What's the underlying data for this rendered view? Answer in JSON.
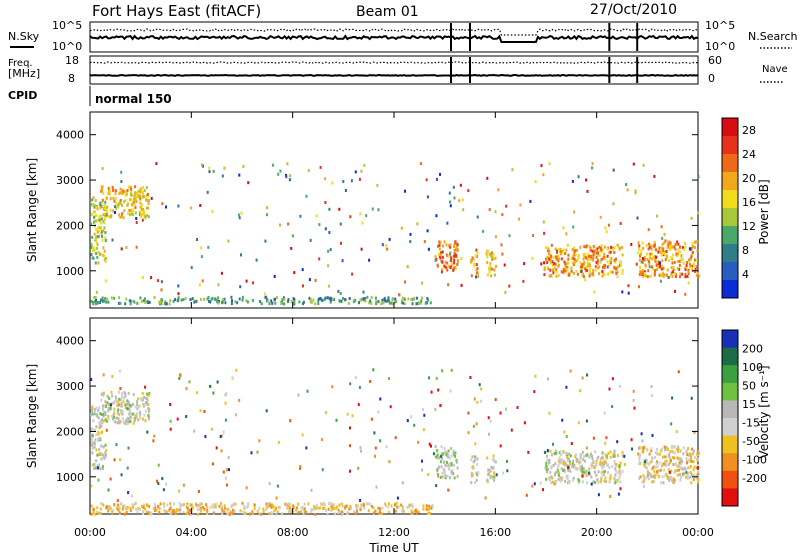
{
  "header": {
    "station": "Fort Hays East (fitACF)",
    "beam": "Beam 01",
    "date": "27/Oct/2010"
  },
  "noise_panel": {
    "left_label": "N.Sky",
    "right_label": "N.Search",
    "left_ticks": [
      "10^5",
      "10^0"
    ],
    "right_ticks": [
      "10^5",
      "10^0"
    ]
  },
  "freq_panel": {
    "left_label_1": "Freq.",
    "left_label_2": "[MHz]",
    "right_label": "Nave",
    "left_ticks": [
      "18",
      "8"
    ],
    "right_ticks": [
      "60",
      "0"
    ]
  },
  "cpid": {
    "label": "CPID",
    "value": "normal 150"
  },
  "axes": {
    "y_label": "Slant Range [km]",
    "y_ticks": [
      "1000",
      "2000",
      "3000",
      "4000"
    ],
    "x_ticks": [
      "00:00",
      "04:00",
      "08:00",
      "12:00",
      "16:00",
      "20:00",
      "00:00"
    ],
    "x_label": "Time UT"
  },
  "power_bar": {
    "label": "Power [dB]",
    "ticks": [
      "4",
      "8",
      "12",
      "16",
      "20",
      "24",
      "28"
    ],
    "colors": [
      "#0b2bd6",
      "#2a5cc0",
      "#2f7d88",
      "#4aa86a",
      "#a8c83a",
      "#f0dc1c",
      "#f2a81a",
      "#ee6a18",
      "#e6321c",
      "#d80c14"
    ]
  },
  "velocity_bar": {
    "label": "Velocity [m s⁻¹]",
    "ticks": [
      "200",
      "100",
      "50",
      "15",
      "-15",
      "-50",
      "-100",
      "-200"
    ],
    "colors": [
      "#1830b8",
      "#1c6c48",
      "#3aa040",
      "#70c040",
      "#b8b8b8",
      "#d0d0d0",
      "#f0c020",
      "#f09020",
      "#f05010",
      "#e01010"
    ]
  },
  "chart_data": [
    {
      "type": "heatmap",
      "title": "Power",
      "xlim": [
        0,
        24
      ],
      "ylim": [
        180,
        4500
      ],
      "xlabel": "Time UT",
      "ylabel": "Slant Range [km]",
      "colorbar": "Power [dB]",
      "clim": [
        0,
        30
      ],
      "regions": [
        {
          "t": [
            0.0,
            0.6
          ],
          "r": [
            1200,
            2600
          ],
          "value": 14
        },
        {
          "t": [
            0.4,
            2.3
          ],
          "r": [
            2200,
            2900
          ],
          "value": 18
        },
        {
          "t": [
            0.0,
            13.5
          ],
          "r": [
            300,
            450
          ],
          "value": 10
        },
        {
          "t": [
            13.6,
            14.5
          ],
          "r": [
            1000,
            1700
          ],
          "value": 22
        },
        {
          "t": [
            15.0,
            15.3
          ],
          "r": [
            900,
            1500
          ],
          "value": 20
        },
        {
          "t": [
            15.6,
            16.0
          ],
          "r": [
            900,
            1500
          ],
          "value": 18
        },
        {
          "t": [
            17.9,
            21.0
          ],
          "r": [
            900,
            1600
          ],
          "value": 20
        },
        {
          "t": [
            21.6,
            24.0
          ],
          "r": [
            900,
            1700
          ],
          "value": 20
        }
      ]
    },
    {
      "type": "heatmap",
      "title": "Velocity",
      "xlim": [
        0,
        24
      ],
      "ylim": [
        180,
        4500
      ],
      "xlabel": "Time UT",
      "ylabel": "Slant Range [km]",
      "colorbar": "Velocity [m s⁻¹]",
      "clim": [
        -200,
        200
      ],
      "regions": [
        {
          "t": [
            0.0,
            0.6
          ],
          "r": [
            1200,
            2600
          ],
          "value": 0
        },
        {
          "t": [
            0.4,
            2.3
          ],
          "r": [
            2200,
            2900
          ],
          "value": 0
        },
        {
          "t": [
            0.0,
            13.5
          ],
          "r": [
            200,
            450
          ],
          "value": -60
        },
        {
          "t": [
            13.6,
            14.5
          ],
          "r": [
            1000,
            1700
          ],
          "value": 20
        },
        {
          "t": [
            15.0,
            15.3
          ],
          "r": [
            900,
            1500
          ],
          "value": 0
        },
        {
          "t": [
            15.6,
            16.0
          ],
          "r": [
            900,
            1500
          ],
          "value": 0
        },
        {
          "t": [
            17.9,
            21.0
          ],
          "r": [
            900,
            1600
          ],
          "value": 0
        },
        {
          "t": [
            21.6,
            24.0
          ],
          "r": [
            900,
            1700
          ],
          "value": -40
        }
      ]
    }
  ]
}
